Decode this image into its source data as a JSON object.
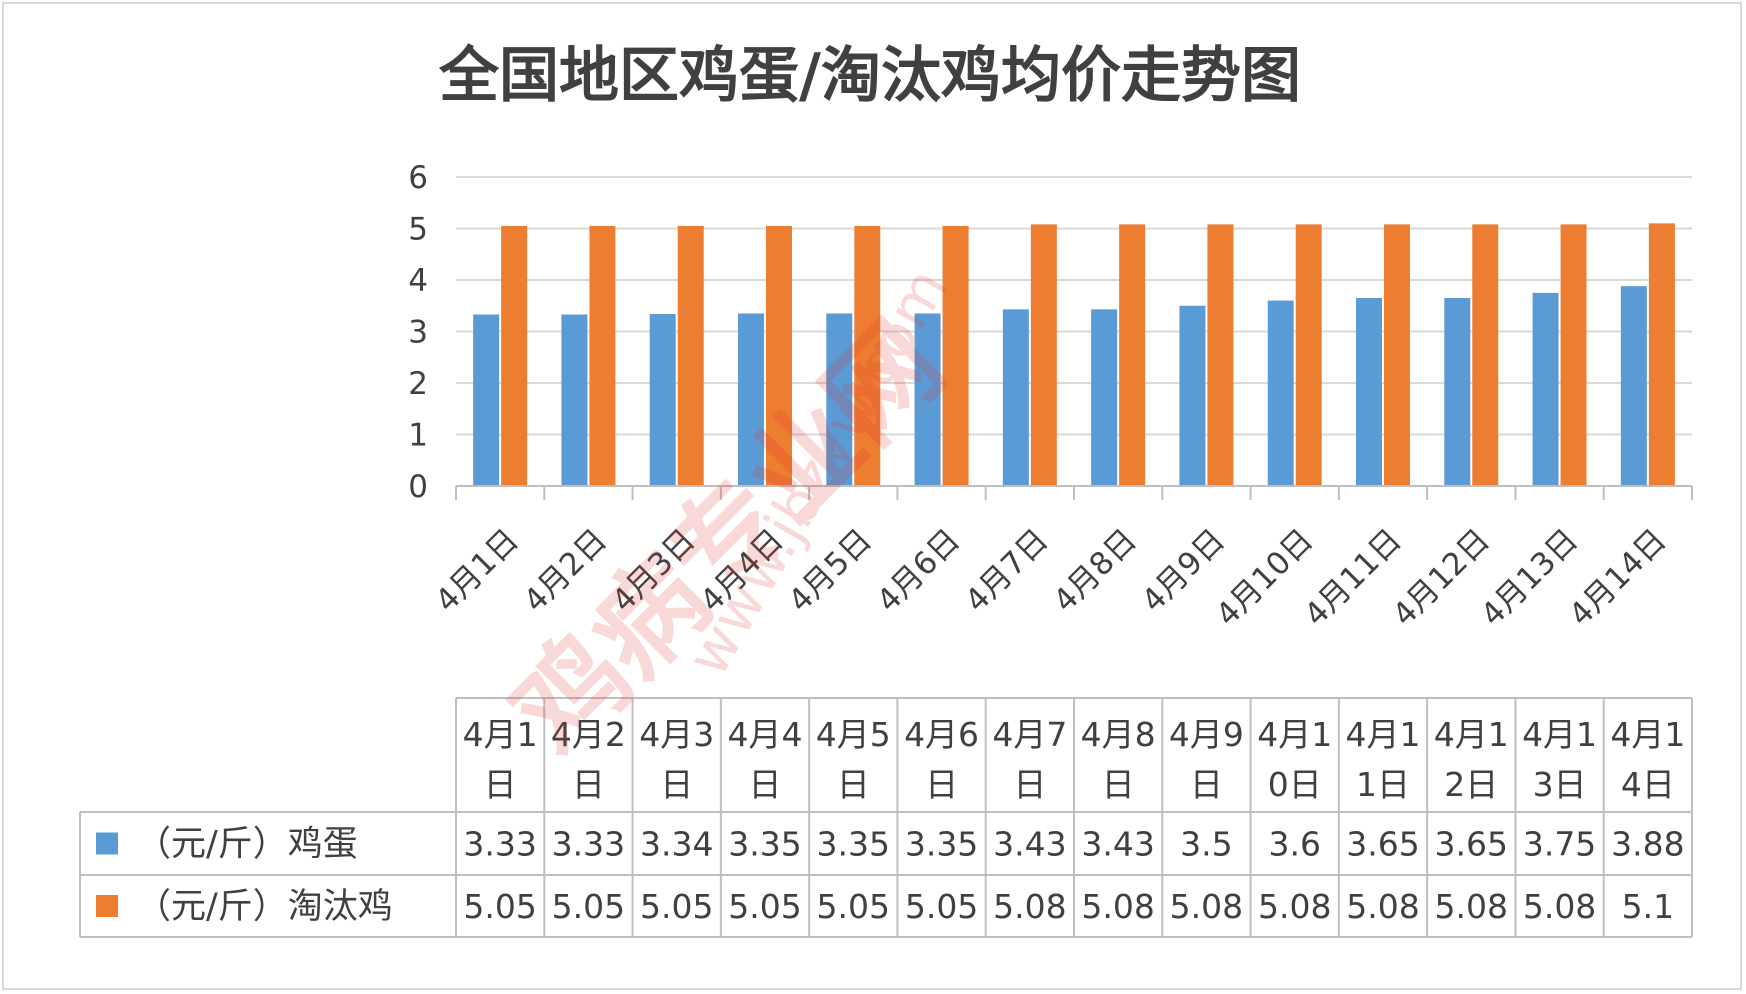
{
  "chart_data": {
    "type": "bar",
    "title": "全国地区鸡蛋/淘汰鸡均价走势图",
    "xlabel": "",
    "ylabel": "",
    "ylim": [
      0,
      6
    ],
    "yticks": [
      0,
      1,
      2,
      3,
      4,
      5,
      6
    ],
    "grid": true,
    "categories": [
      "4月1日",
      "4月2日",
      "4月3日",
      "4月4日",
      "4月5日",
      "4月6日",
      "4月7日",
      "4月8日",
      "4月9日",
      "4月10日",
      "4月11日",
      "4月12日",
      "4月13日",
      "4月14日"
    ],
    "table_headers": [
      [
        "4月1",
        "日"
      ],
      [
        "4月2",
        "日"
      ],
      [
        "4月3",
        "日"
      ],
      [
        "4月4",
        "日"
      ],
      [
        "4月5",
        "日"
      ],
      [
        "4月6",
        "日"
      ],
      [
        "4月7",
        "日"
      ],
      [
        "4月8",
        "日"
      ],
      [
        "4月9",
        "日"
      ],
      [
        "4月1",
        "0日"
      ],
      [
        "4月1",
        "1日"
      ],
      [
        "4月1",
        "2日"
      ],
      [
        "4月1",
        "3日"
      ],
      [
        "4月1",
        "4日"
      ]
    ],
    "series": [
      {
        "name": "（元/斤）鸡蛋",
        "color": "#5b9bd5",
        "values": [
          3.33,
          3.33,
          3.34,
          3.35,
          3.35,
          3.35,
          3.43,
          3.43,
          3.5,
          3.6,
          3.65,
          3.65,
          3.75,
          3.88
        ],
        "display": [
          "3.33",
          "3.33",
          "3.34",
          "3.35",
          "3.35",
          "3.35",
          "3.43",
          "3.43",
          "3.5",
          "3.6",
          "3.65",
          "3.65",
          "3.75",
          "3.88"
        ]
      },
      {
        "name": "（元/斤）淘汰鸡",
        "color": "#ed7d31",
        "values": [
          5.05,
          5.05,
          5.05,
          5.05,
          5.05,
          5.05,
          5.08,
          5.08,
          5.08,
          5.08,
          5.08,
          5.08,
          5.08,
          5.1
        ],
        "display": [
          "5.05",
          "5.05",
          "5.05",
          "5.05",
          "5.05",
          "5.05",
          "5.08",
          "5.08",
          "5.08",
          "5.08",
          "5.08",
          "5.08",
          "5.08",
          "5.1"
        ]
      }
    ]
  },
  "watermark": {
    "brand": "鸡病专业网",
    "site": "www.jbzyw.com"
  }
}
